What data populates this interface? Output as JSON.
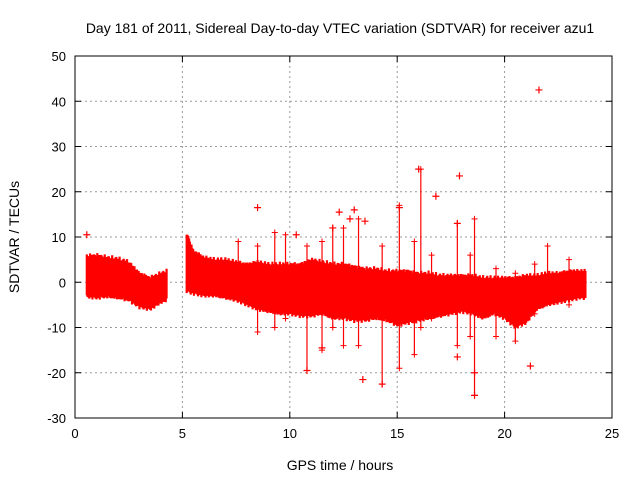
{
  "chart_data": {
    "type": "scatter",
    "title": "Day 181 of 2011, Sidereal Day-to-day VTEC variation (SDTVAR) for receiver azu1",
    "xlabel": "GPS time / hours",
    "ylabel": "SDTVAR / TECUs",
    "xlim": [
      0,
      25
    ],
    "ylim": [
      -30,
      50
    ],
    "x_ticks": [
      0,
      5,
      10,
      15,
      20,
      25
    ],
    "y_ticks": [
      -30,
      -20,
      -10,
      0,
      10,
      20,
      30,
      40,
      50
    ],
    "grid": true,
    "marker": "+",
    "color": "#ff0000",
    "series": [
      {
        "name": "SDTVAR",
        "band": [
          [
            0.55,
            -3.2,
            5.8
          ],
          [
            1.0,
            -3.5,
            6.0
          ],
          [
            1.5,
            -3.2,
            5.5
          ],
          [
            2.0,
            -3.5,
            5.2
          ],
          [
            2.5,
            -4.0,
            4.5
          ],
          [
            3.0,
            -5.5,
            2.0
          ],
          [
            3.5,
            -6.0,
            1.0
          ],
          [
            4.0,
            -4.5,
            2.0
          ],
          [
            4.3,
            -4.0,
            2.5
          ],
          [
            5.2,
            -2.0,
            11.0
          ],
          [
            5.5,
            -2.5,
            7.0
          ],
          [
            6.0,
            -3.0,
            5.5
          ],
          [
            6.5,
            -3.0,
            5.0
          ],
          [
            7.0,
            -3.5,
            5.0
          ],
          [
            7.5,
            -4.0,
            4.5
          ],
          [
            8.0,
            -5.0,
            4.0
          ],
          [
            8.5,
            -6.0,
            4.5
          ],
          [
            9.0,
            -6.5,
            4.0
          ],
          [
            9.5,
            -7.0,
            4.0
          ],
          [
            10.0,
            -7.0,
            4.0
          ],
          [
            10.5,
            -7.5,
            4.0
          ],
          [
            11.0,
            -7.5,
            5.0
          ],
          [
            11.5,
            -7.0,
            4.5
          ],
          [
            12.0,
            -8.0,
            4.0
          ],
          [
            12.5,
            -8.0,
            4.0
          ],
          [
            13.0,
            -8.5,
            3.5
          ],
          [
            13.5,
            -8.5,
            3.0
          ],
          [
            14.0,
            -8.0,
            3.0
          ],
          [
            14.5,
            -8.5,
            2.5
          ],
          [
            15.0,
            -9.5,
            2.5
          ],
          [
            15.5,
            -9.0,
            2.5
          ],
          [
            16.0,
            -8.5,
            2.0
          ],
          [
            16.5,
            -8.0,
            2.0
          ],
          [
            17.0,
            -7.5,
            1.5
          ],
          [
            17.5,
            -7.0,
            1.5
          ],
          [
            18.0,
            -6.5,
            1.5
          ],
          [
            18.5,
            -7.0,
            1.5
          ],
          [
            19.0,
            -8.0,
            1.0
          ],
          [
            19.5,
            -7.0,
            1.0
          ],
          [
            20.0,
            -8.0,
            1.0
          ],
          [
            20.5,
            -10.0,
            1.0
          ],
          [
            21.0,
            -9.0,
            1.5
          ],
          [
            21.5,
            -6.0,
            1.5
          ],
          [
            22.0,
            -5.0,
            2.0
          ],
          [
            22.5,
            -4.5,
            2.0
          ],
          [
            23.0,
            -4.0,
            2.5
          ],
          [
            23.5,
            -3.5,
            2.5
          ],
          [
            23.8,
            -3.5,
            2.5
          ]
        ],
        "spikes": [
          [
            7.6,
            -3.0,
            9.0
          ],
          [
            8.5,
            -11.0,
            8.0
          ],
          [
            9.3,
            -10.0,
            11.0
          ],
          [
            9.8,
            -8.0,
            10.5
          ],
          [
            10.8,
            -19.5,
            8.0
          ],
          [
            11.5,
            -15.0,
            9.0
          ],
          [
            12.0,
            -10.0,
            12.0
          ],
          [
            12.5,
            -14.0,
            12.0
          ],
          [
            13.2,
            -14.0,
            14.0
          ],
          [
            14.3,
            -22.5,
            8.0
          ],
          [
            15.1,
            -19.0,
            17.0
          ],
          [
            15.8,
            -16.0,
            9.0
          ],
          [
            16.1,
            -10.0,
            25.0
          ],
          [
            16.6,
            -8.0,
            6.0
          ],
          [
            17.8,
            -14.0,
            13.0
          ],
          [
            18.6,
            -25.0,
            14.0
          ],
          [
            18.4,
            -12.0,
            6.0
          ],
          [
            19.6,
            -12.0,
            3.0
          ],
          [
            20.5,
            -13.0,
            2.0
          ],
          [
            21.4,
            -7.0,
            4.0
          ],
          [
            22.0,
            -4.0,
            8.0
          ],
          [
            23.0,
            -5.0,
            5.0
          ]
        ],
        "points": [
          [
            0.55,
            10.5
          ],
          [
            8.5,
            16.5
          ],
          [
            10.3,
            10.5
          ],
          [
            10.8,
            -19.5
          ],
          [
            11.5,
            -14.5
          ],
          [
            12.0,
            12.0
          ],
          [
            12.3,
            15.5
          ],
          [
            12.8,
            14.0
          ],
          [
            13.0,
            16.0
          ],
          [
            13.5,
            13.5
          ],
          [
            13.4,
            -21.5
          ],
          [
            14.3,
            -22.5
          ],
          [
            15.1,
            16.5
          ],
          [
            16.0,
            25.0
          ],
          [
            16.8,
            19.0
          ],
          [
            17.8,
            13.0
          ],
          [
            17.8,
            -16.5
          ],
          [
            17.9,
            23.5
          ],
          [
            18.6,
            -20.0
          ],
          [
            18.6,
            -25.0
          ],
          [
            21.2,
            -18.5
          ],
          [
            21.6,
            42.5
          ]
        ]
      }
    ]
  }
}
